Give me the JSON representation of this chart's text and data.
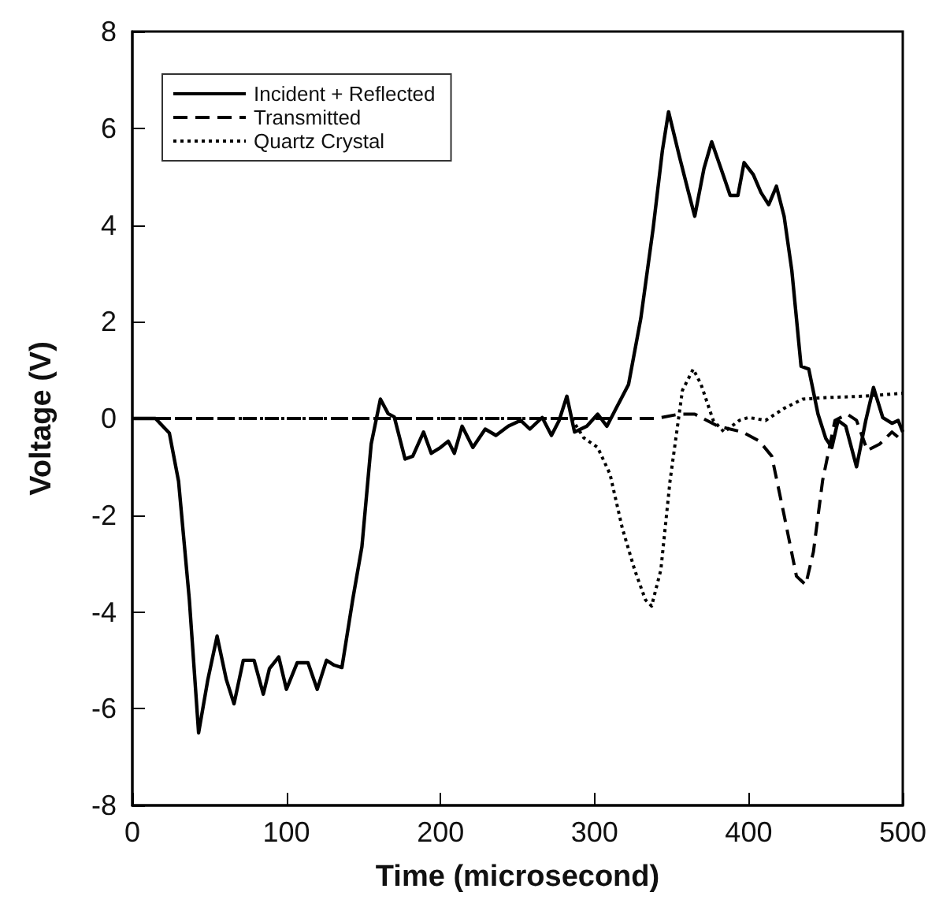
{
  "chart_data": {
    "type": "line",
    "xlabel": "Time (microsecond)",
    "ylabel": "Voltage (V)",
    "xlim": [
      0,
      500
    ],
    "xticks": [
      0,
      100,
      200,
      300,
      400,
      500
    ],
    "ylim": [
      -8,
      8
    ],
    "yticks": [
      -8,
      -6,
      -4,
      -2,
      0,
      2,
      4,
      6,
      8
    ],
    "grid": false,
    "legend": "top left",
    "marker": "none",
    "series": [
      {
        "name": "Incident + Reflected",
        "color": "#000000",
        "line_style": "solid",
        "x": [
          0,
          15,
          24,
          30,
          37,
          43,
          49,
          55,
          61,
          66,
          72,
          79,
          85,
          89,
          95,
          100,
          107,
          114,
          120,
          126,
          131,
          136,
          143,
          149,
          155,
          161,
          166,
          170,
          177,
          182,
          189,
          194,
          200,
          205,
          209,
          214,
          221,
          229,
          236,
          244,
          252,
          258,
          266,
          272,
          277,
          282,
          287,
          295,
          302,
          308,
          314,
          322,
          330,
          338,
          344,
          348,
          355,
          361,
          365,
          371,
          376,
          382,
          388,
          393,
          397,
          403,
          408,
          413,
          418,
          423,
          428,
          434,
          439,
          445,
          450,
          454,
          458,
          463,
          470,
          476,
          481,
          487,
          493,
          497,
          500
        ],
        "values": [
          0,
          0,
          -0.3,
          -1.3,
          -3.75,
          -6.5,
          -5.4,
          -4.5,
          -5.4,
          -5.9,
          -5.0,
          -5.0,
          -5.7,
          -5.17,
          -4.93,
          -5.6,
          -5.05,
          -5.05,
          -5.6,
          -5.0,
          -5.1,
          -5.15,
          -3.75,
          -2.65,
          -0.53,
          0.4,
          0.1,
          0.03,
          -0.84,
          -0.78,
          -0.28,
          -0.72,
          -0.6,
          -0.47,
          -0.72,
          -0.16,
          -0.6,
          -0.22,
          -0.35,
          -0.16,
          -0.04,
          -0.22,
          0.02,
          -0.35,
          -0.04,
          0.46,
          -0.28,
          -0.16,
          0.09,
          -0.16,
          0.21,
          0.7,
          2.07,
          3.93,
          5.54,
          6.34,
          5.42,
          4.67,
          4.18,
          5.17,
          5.72,
          5.17,
          4.61,
          4.61,
          5.29,
          5.04,
          4.67,
          4.42,
          4.8,
          4.18,
          3.06,
          1.08,
          1.02,
          0.09,
          -0.41,
          -0.6,
          -0.04,
          -0.16,
          -1.0,
          -0.04,
          0.64,
          0.02,
          -0.1,
          -0.04,
          -0.28
        ]
      },
      {
        "name": "Transmitted",
        "color": "#000000",
        "line_style": "dashed",
        "x": [
          0,
          100,
          200,
          300,
          340,
          355,
          365,
          380,
          396,
          407,
          415,
          423,
          431,
          437,
          442,
          448,
          456,
          464,
          470,
          477,
          485,
          493,
          500
        ],
        "values": [
          0,
          0,
          0,
          0,
          0,
          0.09,
          0.09,
          -0.16,
          -0.28,
          -0.47,
          -0.78,
          -2.0,
          -3.26,
          -3.44,
          -2.76,
          -1.28,
          -0.04,
          0.09,
          -0.04,
          -0.66,
          -0.53,
          -0.28,
          -0.47
        ]
      },
      {
        "name": "Quartz Crystal",
        "color": "#000000",
        "line_style": "dotted",
        "x": [
          0,
          100,
          200,
          285,
          293,
          302,
          310,
          318,
          326,
          333,
          337,
          343,
          349,
          357,
          364,
          369,
          377,
          384,
          394,
          400,
          411,
          423,
          435,
          450,
          474,
          500
        ],
        "values": [
          0,
          0,
          0,
          0,
          -0.4,
          -0.6,
          -1.15,
          -2.27,
          -3.13,
          -3.75,
          -3.88,
          -3.13,
          -1.28,
          0.58,
          1.02,
          0.71,
          -0.04,
          -0.28,
          -0.04,
          0.02,
          -0.04,
          0.21,
          0.4,
          0.43,
          0.46,
          0.52
        ]
      }
    ]
  }
}
